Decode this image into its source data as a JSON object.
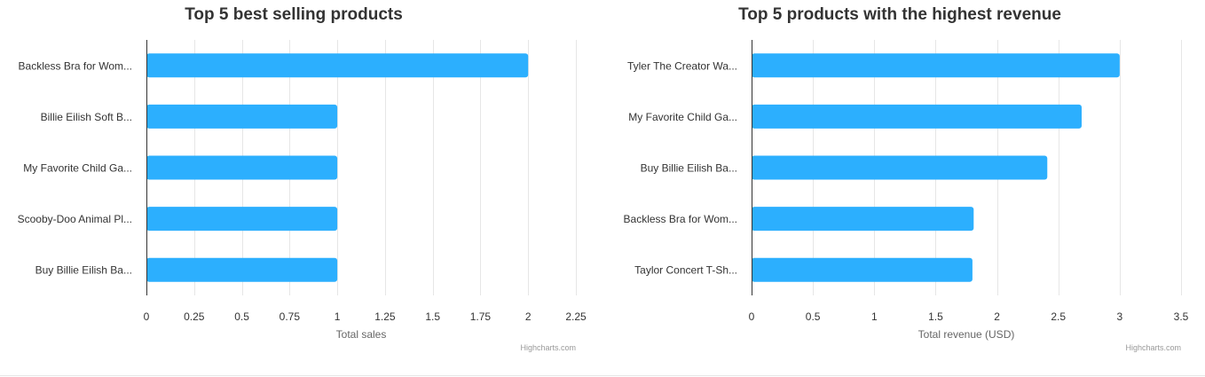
{
  "chart_data": [
    {
      "type": "bar",
      "orientation": "horizontal",
      "title": "Top 5 best selling products",
      "categories": [
        "Backless Bra for Wom...",
        "Billie Eilish Soft B...",
        "My Favorite Child Ga...",
        "Scooby-Doo Animal Pl...",
        "Buy Billie Eilish Ba..."
      ],
      "values": [
        2,
        1,
        1,
        1,
        1
      ],
      "xlabel": "Total sales",
      "ylabel": "",
      "xlim": [
        0,
        2.25
      ],
      "ticks": [
        "0",
        "0.25",
        "0.5",
        "0.75",
        "1",
        "1.25",
        "1.5",
        "1.75",
        "2",
        "2.25"
      ],
      "tick_values": [
        0,
        0.25,
        0.5,
        0.75,
        1,
        1.25,
        1.5,
        1.75,
        2,
        2.25
      ],
      "grid": true,
      "bar_color": "#2caffe",
      "credit": "Highcharts.com"
    },
    {
      "type": "bar",
      "orientation": "horizontal",
      "title": "Top 5 products with the highest revenue",
      "categories": [
        "Tyler The Creator Wa...",
        "My Favorite Child Ga...",
        "Buy Billie Eilish Ba...",
        "Backless Bra for Wom...",
        "Taylor Concert T-Sh..."
      ],
      "values": [
        3.0,
        2.69,
        2.41,
        1.81,
        1.8
      ],
      "xlabel": "Total revenue (USD)",
      "ylabel": "",
      "xlim": [
        0,
        3.5
      ],
      "ticks": [
        "0",
        "0.5",
        "1",
        "1.5",
        "2",
        "2.5",
        "3",
        "3.5"
      ],
      "tick_values": [
        0,
        0.5,
        1,
        1.5,
        2,
        2.5,
        3,
        3.5
      ],
      "grid": true,
      "bar_color": "#2caffe",
      "credit": "Highcharts.com"
    }
  ],
  "colors": {
    "title": "#333333",
    "label": "#333333",
    "axis_title": "#666666",
    "grid": "#e6e6e6",
    "axis_line": "#333333",
    "credit": "#999999"
  }
}
